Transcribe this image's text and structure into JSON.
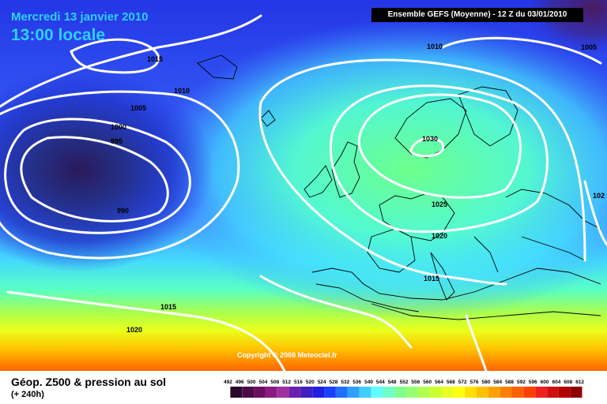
{
  "header": {
    "date": "Mercredi 13 janvier 2010",
    "time": "13:00 locale",
    "model_run": "Ensemble GEFS (Moyenne)  -  12 Z du 03/01/2010"
  },
  "footer": {
    "title": "Géop. Z500 & pression au sol",
    "lead_time": "(+ 240h)"
  },
  "copyright": "Copyright © 2008 Meteociel.fr",
  "isobar_labels": [
    "1015",
    "1010",
    "1005",
    "1000",
    "995",
    "990",
    "1015",
    "1020",
    "1010",
    "1005",
    "1030",
    "1025",
    "1020",
    "1015",
    "102"
  ],
  "legend": {
    "values": [
      "492",
      "496",
      "500",
      "504",
      "508",
      "512",
      "516",
      "520",
      "524",
      "528",
      "532",
      "536",
      "540",
      "544",
      "548",
      "552",
      "556",
      "560",
      "564",
      "568",
      "572",
      "576",
      "580",
      "584",
      "588",
      "592",
      "596",
      "600",
      "604",
      "608",
      "612"
    ],
    "colors": [
      "#2a0a2a",
      "#4a0a4a",
      "#6a1060",
      "#8a1a80",
      "#a030a0",
      "#6a20b0",
      "#4020c0",
      "#2020e0",
      "#1a40ff",
      "#2070ff",
      "#30a0ff",
      "#40d0ff",
      "#60ffff",
      "#70ffc8",
      "#80ff90",
      "#98ff70",
      "#b0ff50",
      "#ccff30",
      "#e8ff20",
      "#ffff10",
      "#ffe000",
      "#ffc000",
      "#ffa000",
      "#ff8000",
      "#ff6000",
      "#ff4000",
      "#f02020",
      "#d01010",
      "#b00000",
      "#900000"
    ]
  },
  "colors": {
    "header_text": "#2fd0ff",
    "isobar": "#ffffff"
  }
}
